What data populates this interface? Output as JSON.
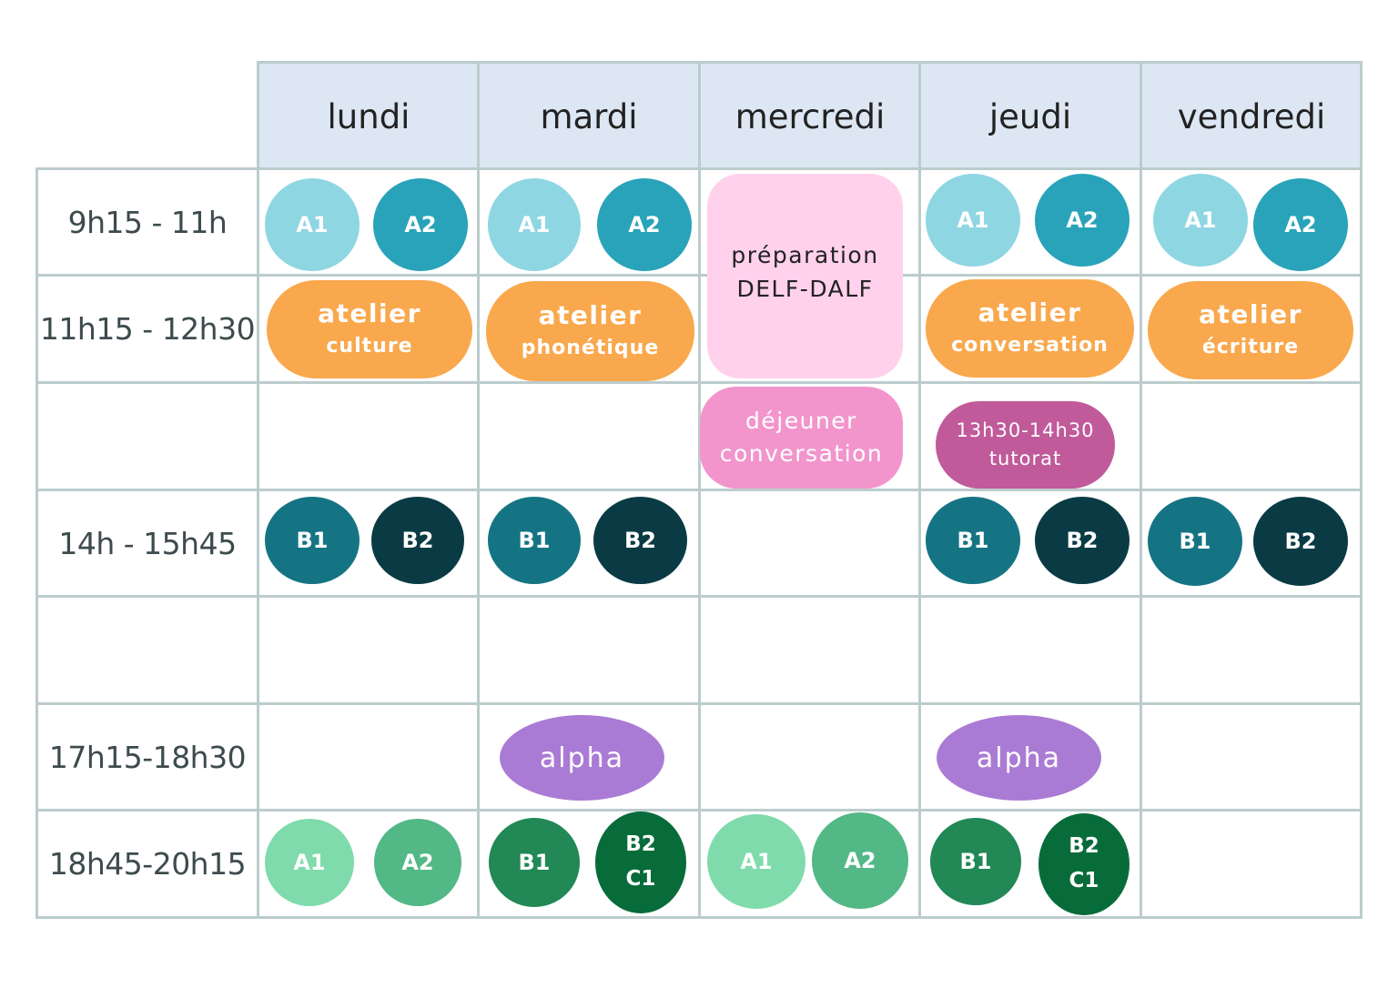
{
  "days": [
    "lundi",
    "mardi",
    "mercredi",
    "jeudi",
    "vendredi"
  ],
  "times": [
    "9h15 - 11h",
    "11h15 - 12h30",
    "",
    "14h - 15h45",
    "",
    "17h15-18h30",
    "18h45-20h15"
  ],
  "colors": {
    "header_bg": "#dde7f3",
    "grid": "#bccccd",
    "level_a1": "#8fd6e3",
    "level_a2": "#29a3b9",
    "level_b1": "#157483",
    "level_b2": "#0a3b45",
    "evening_a1": "#7fdbac",
    "evening_a2": "#52b886",
    "evening_b1": "#218856",
    "evening_b2c1": "#076c39",
    "atelier": "#f9a84d",
    "delf": "#ffd1ec",
    "dejeuner": "#f295cc",
    "tutorat": "#c05a9a",
    "alpha": "#aa7bd4"
  },
  "morning": {
    "lundi": [
      "A1",
      "A2"
    ],
    "mardi": [
      "A1",
      "A2"
    ],
    "jeudi": [
      "A1",
      "A2"
    ],
    "vendredi": [
      "A1",
      "A2"
    ]
  },
  "ateliers": {
    "lundi": {
      "line1": "atelier",
      "line2": "culture"
    },
    "mardi": {
      "line1": "atelier",
      "line2": "phonétique"
    },
    "jeudi": {
      "line1": "atelier",
      "line2": "conversation"
    },
    "vendredi": {
      "line1": "atelier",
      "line2": "écriture"
    }
  },
  "mercredi_prep": {
    "line1": "préparation",
    "line2": "DELF-DALF"
  },
  "dejeuner": {
    "line1": "déjeuner",
    "line2": "conversation"
  },
  "tutorat": {
    "line1": "13h30-14h30",
    "line2": "tutorat"
  },
  "afternoon": {
    "lundi": [
      "B1",
      "B2"
    ],
    "mardi": [
      "B1",
      "B2"
    ],
    "jeudi": [
      "B1",
      "B2"
    ],
    "vendredi": [
      "B1",
      "B2"
    ]
  },
  "alpha": {
    "mardi": "alpha",
    "jeudi": "alpha"
  },
  "evening": {
    "lundi": [
      "A1",
      "A2"
    ],
    "mardi": {
      "first": "B1",
      "second_line1": "B2",
      "second_line2": "C1"
    },
    "mercredi": [
      "A1",
      "A2"
    ],
    "jeudi": {
      "first": "B1",
      "second_line1": "B2",
      "second_line2": "C1"
    }
  }
}
